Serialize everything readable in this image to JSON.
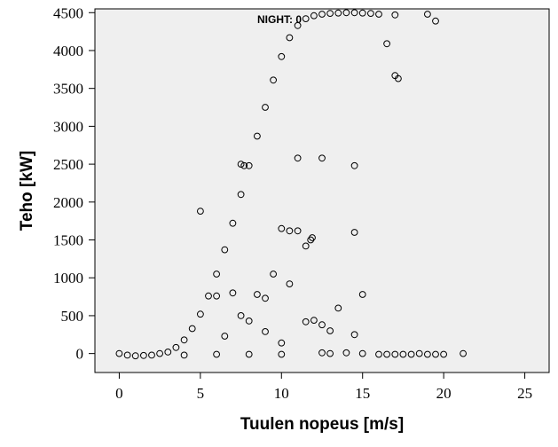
{
  "chart_data": {
    "type": "scatter",
    "title": "",
    "xlabel": "Tuulen nopeus [m/s]",
    "ylabel": "Teho [kW]",
    "annotation": "NIGHT: 0",
    "xlim": [
      -1.5,
      26.5
    ],
    "ylim": [
      -250,
      4550
    ],
    "x_ticks": [
      0,
      5,
      10,
      15,
      20,
      25
    ],
    "y_ticks": [
      0,
      500,
      1000,
      1500,
      2000,
      2500,
      3000,
      3500,
      4000,
      4500
    ],
    "grid": false,
    "marker": "open-circle",
    "colors": {
      "plot_background": "#efefef",
      "marker_stroke": "#000000"
    },
    "series": [
      {
        "points": [
          [
            0.0,
            0
          ],
          [
            0.5,
            -20
          ],
          [
            1.0,
            -30
          ],
          [
            1.5,
            -25
          ],
          [
            2.0,
            -20
          ],
          [
            2.5,
            0
          ],
          [
            3.0,
            20
          ],
          [
            3.5,
            80
          ],
          [
            4.0,
            180
          ],
          [
            4.5,
            330
          ],
          [
            5.0,
            520
          ],
          [
            5.5,
            760
          ],
          [
            6.0,
            1050
          ],
          [
            6.5,
            1370
          ],
          [
            7.0,
            1720
          ],
          [
            7.5,
            2100
          ],
          [
            8.0,
            2480
          ],
          [
            8.5,
            2870
          ],
          [
            9.0,
            3250
          ],
          [
            9.5,
            3610
          ],
          [
            10.0,
            3920
          ],
          [
            10.5,
            4170
          ],
          [
            11.0,
            4330
          ],
          [
            11.5,
            4420
          ],
          [
            12.0,
            4460
          ],
          [
            12.5,
            4480
          ],
          [
            13.0,
            4490
          ],
          [
            13.5,
            4495
          ],
          [
            14.0,
            4500
          ],
          [
            14.5,
            4500
          ],
          [
            15.0,
            4495
          ],
          [
            15.5,
            4490
          ],
          [
            16.0,
            4480
          ],
          [
            17.0,
            4470
          ],
          [
            19.0,
            4480
          ],
          [
            19.5,
            4390
          ],
          [
            16.5,
            4090
          ],
          [
            17.0,
            3670
          ],
          [
            17.2,
            3630
          ],
          [
            14.5,
            2480
          ],
          [
            12.5,
            2580
          ],
          [
            11.0,
            2580
          ],
          [
            7.5,
            2500
          ],
          [
            7.7,
            2480
          ],
          [
            5.0,
            1880
          ],
          [
            10.0,
            1650
          ],
          [
            10.5,
            1620
          ],
          [
            11.0,
            1620
          ],
          [
            11.5,
            1420
          ],
          [
            11.8,
            1500
          ],
          [
            11.9,
            1530
          ],
          [
            14.5,
            1600
          ],
          [
            9.5,
            1050
          ],
          [
            10.5,
            920
          ],
          [
            15.0,
            780
          ],
          [
            6.0,
            760
          ],
          [
            7.0,
            800
          ],
          [
            8.5,
            780
          ],
          [
            9.0,
            730
          ],
          [
            11.5,
            420
          ],
          [
            12.0,
            440
          ],
          [
            12.5,
            380
          ],
          [
            13.0,
            300
          ],
          [
            13.5,
            600
          ],
          [
            7.5,
            500
          ],
          [
            8.0,
            430
          ],
          [
            9.0,
            290
          ],
          [
            14.5,
            250
          ],
          [
            10.0,
            140
          ],
          [
            6.5,
            230
          ],
          [
            12.5,
            10
          ],
          [
            13.0,
            0
          ],
          [
            14.0,
            10
          ],
          [
            15.0,
            0
          ],
          [
            16.0,
            -10
          ],
          [
            16.5,
            -10
          ],
          [
            17.0,
            -10
          ],
          [
            17.5,
            -10
          ],
          [
            18.0,
            -10
          ],
          [
            18.5,
            0
          ],
          [
            19.0,
            -10
          ],
          [
            19.5,
            -10
          ],
          [
            20.0,
            -10
          ],
          [
            21.2,
            0
          ],
          [
            4.0,
            -20
          ],
          [
            6.0,
            -10
          ],
          [
            8.0,
            -10
          ],
          [
            10.0,
            -10
          ]
        ]
      }
    ]
  }
}
